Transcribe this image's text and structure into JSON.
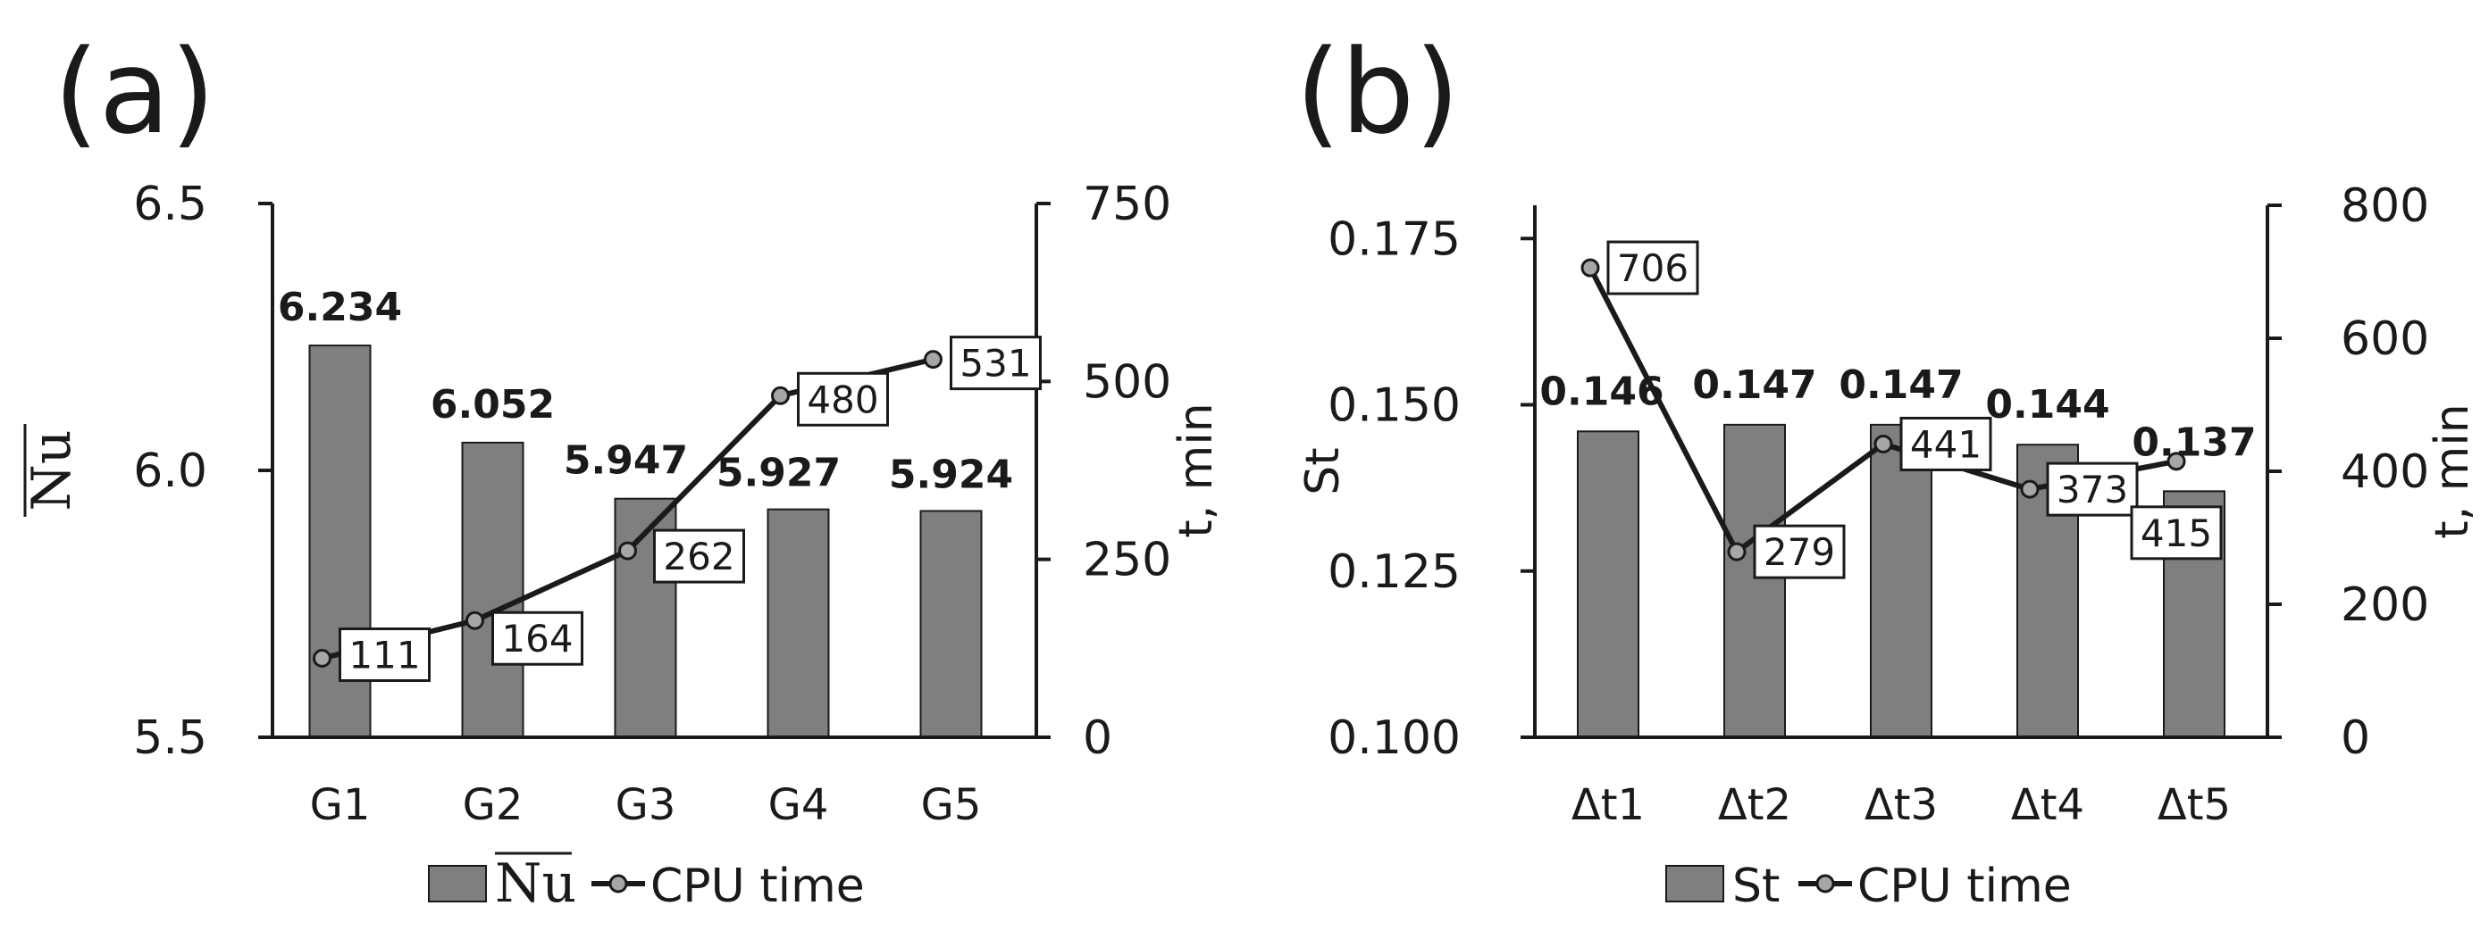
{
  "colors": {
    "bar": "#7f7f7f",
    "bar_stroke": "#1a1a1a",
    "line": "#1a1a1a",
    "marker": "#a6a6a6",
    "axis": "#1a1a1a"
  },
  "chart_data": [
    {
      "panel_label": "(a)",
      "type": "bar",
      "categories": [
        "G1",
        "G2",
        "G3",
        "G4",
        "G5"
      ],
      "series": [
        {
          "name": "Nu",
          "axis": "left",
          "kind": "bar",
          "values": [
            6.234,
            6.052,
            5.947,
            5.927,
            5.924
          ],
          "labels": [
            "6.234",
            "6.052",
            "5.947",
            "5.927",
            "5.924"
          ]
        },
        {
          "name": "CPU time",
          "axis": "right",
          "kind": "line",
          "values": [
            111,
            164,
            262,
            480,
            531
          ],
          "labels": [
            "111",
            "164",
            "262",
            "480",
            "531"
          ]
        }
      ],
      "ylabel": "Nu",
      "ylabel_overline": true,
      "ylim": [
        5.5,
        6.5
      ],
      "yticks": [
        "5.5",
        "6.0",
        "6.5"
      ],
      "y2label": "t, min",
      "y2lim": [
        0,
        750
      ],
      "y2ticks": [
        "0",
        "250",
        "500",
        "750"
      ],
      "legend": [
        {
          "label": "Nu",
          "kind": "bar",
          "overline": true
        },
        {
          "label": "CPU time",
          "kind": "line"
        }
      ],
      "legend_position": "bottom"
    },
    {
      "panel_label": "(b)",
      "type": "bar",
      "categories": [
        "Δt1",
        "Δt2",
        "Δt3",
        "Δt4",
        "Δt5"
      ],
      "series": [
        {
          "name": "St",
          "axis": "left",
          "kind": "bar",
          "values": [
            0.146,
            0.147,
            0.147,
            0.144,
            0.137
          ],
          "labels": [
            "0.146",
            "0.147",
            "0.147",
            "0.144",
            "0.137"
          ]
        },
        {
          "name": "CPU time",
          "axis": "right",
          "kind": "line",
          "values": [
            706,
            279,
            441,
            373,
            415
          ],
          "labels": [
            "706",
            "279",
            "441",
            "373",
            "415"
          ]
        }
      ],
      "ylabel": "St",
      "ylabel_overline": false,
      "ylim": [
        0.1,
        0.18
      ],
      "yticks": [
        "0.100",
        "0.125",
        "0.150",
        "0.175"
      ],
      "y2label": "t, min",
      "y2lim": [
        0,
        800
      ],
      "y2ticks": [
        "0",
        "200",
        "400",
        "600",
        "800"
      ],
      "legend": [
        {
          "label": "St",
          "kind": "bar",
          "overline": false
        },
        {
          "label": "CPU time",
          "kind": "line"
        }
      ],
      "legend_position": "bottom"
    }
  ]
}
